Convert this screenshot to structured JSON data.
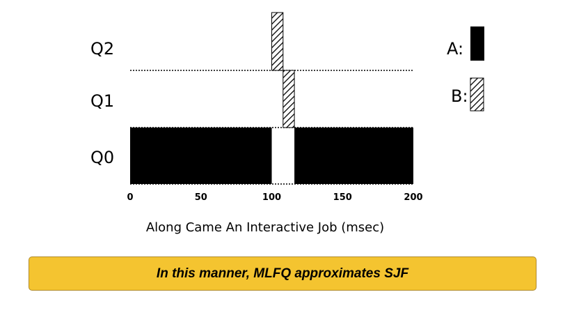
{
  "queues": [
    "Q2",
    "Q1",
    "Q0"
  ],
  "x_axis": {
    "label": "Along Came An Interactive Job (msec)",
    "ticks": [
      "0",
      "50",
      "100",
      "150",
      "200"
    ],
    "range": [
      0,
      200
    ]
  },
  "jobs": [
    {
      "name": "A",
      "label": "A:",
      "pattern": "solid",
      "color": "#000000"
    },
    {
      "name": "B",
      "label": "B:",
      "pattern": "diagonal-hatch",
      "color": "#000000"
    }
  ],
  "segments": [
    {
      "job": "A",
      "queue": "Q0",
      "start": 0,
      "end": 100
    },
    {
      "job": "B",
      "queue": "Q2",
      "start": 100,
      "end": 108
    },
    {
      "job": "B",
      "queue": "Q1",
      "start": 108,
      "end": 116
    },
    {
      "job": "A",
      "queue": "Q0",
      "start": 116,
      "end": 200
    }
  ],
  "banner": {
    "text": "In this manner, MLFQ approximates SJF",
    "background": "#f4c430"
  }
}
